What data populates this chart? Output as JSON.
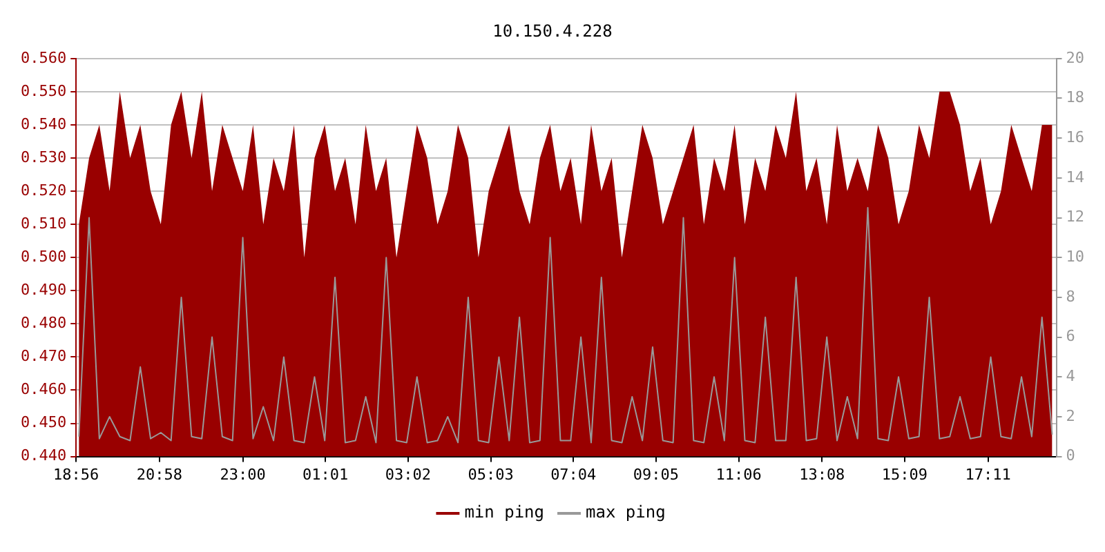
{
  "chart_data": {
    "type": "area",
    "title": "10.150.4.228",
    "x": [
      "--01-01T19:00",
      "--01-01T19:15",
      "--01-01T19:30",
      "--01-01T19:45",
      "--01-01T20:00",
      "--01-01T20:15",
      "--01-01T20:30",
      "--01-01T20:45",
      "--01-01T21:00",
      "--01-01T21:15",
      "--01-01T21:30",
      "--01-01T21:45",
      "--01-01T22:00",
      "--01-01T22:15",
      "--01-01T22:30",
      "--01-01T22:45",
      "--01-01T23:00",
      "--01-01T23:15",
      "--01-01T23:30",
      "--01-01T23:45",
      "--01-02T00:00",
      "--01-02T00:15",
      "--01-02T00:30",
      "--01-02T00:45",
      "--01-02T01:00",
      "--01-02T01:15",
      "--01-02T01:30",
      "--01-02T01:45",
      "--01-02T02:00",
      "--01-02T02:15",
      "--01-02T02:30",
      "--01-02T02:45",
      "--01-02T03:00",
      "--01-02T03:15",
      "--01-02T03:30",
      "--01-02T03:45",
      "--01-02T04:00",
      "--01-02T04:15",
      "--01-02T04:30",
      "--01-02T04:45",
      "--01-02T05:00",
      "--01-02T05:15",
      "--01-02T05:30",
      "--01-02T05:45",
      "--01-02T06:00",
      "--01-02T06:15",
      "--01-02T06:30",
      "--01-02T06:45",
      "--01-02T07:00",
      "--01-02T07:15",
      "--01-02T07:30",
      "--01-02T07:45",
      "--01-02T08:00",
      "--01-02T08:15",
      "--01-02T08:30",
      "--01-02T08:45",
      "--01-02T09:00",
      "--01-02T09:15",
      "--01-02T09:30",
      "--01-02T09:45",
      "--01-02T10:00",
      "--01-02T10:15",
      "--01-02T10:30",
      "--01-02T10:45",
      "--01-02T11:00",
      "--01-02T11:15",
      "--01-02T11:30",
      "--01-02T11:45",
      "--01-02T12:00",
      "--01-02T12:15",
      "--01-02T12:30",
      "--01-02T12:45",
      "--01-02T13:00",
      "--01-02T13:15",
      "--01-02T13:30",
      "--01-02T13:45",
      "--01-02T14:00",
      "--01-02T14:15",
      "--01-02T14:30",
      "--01-02T14:45",
      "--01-02T15:00",
      "--01-02T15:15",
      "--01-02T15:30",
      "--01-02T15:45",
      "--01-02T16:00",
      "--01-02T16:15",
      "--01-02T16:30",
      "--01-02T16:45",
      "--01-02T17:00",
      "--01-02T17:15",
      "--01-02T17:30",
      "--01-02T17:45",
      "--01-02T18:00",
      "--01-02T18:15",
      "--01-02T18:30",
      "--01-02T18:45"
    ],
    "series": [
      {
        "name": "min ping",
        "color": "#990000",
        "values": [
          0.51,
          0.53,
          0.54,
          0.52,
          0.55,
          0.53,
          0.54,
          0.52,
          0.51,
          0.54,
          0.55,
          0.53,
          0.55,
          0.52,
          0.54,
          0.53,
          0.52,
          0.54,
          0.51,
          0.53,
          0.52,
          0.54,
          0.5,
          0.53,
          0.54,
          0.52,
          0.53,
          0.51,
          0.54,
          0.52,
          0.53,
          0.5,
          0.52,
          0.54,
          0.53,
          0.51,
          0.52,
          0.54,
          0.53,
          0.5,
          0.52,
          0.53,
          0.54,
          0.52,
          0.51,
          0.53,
          0.54,
          0.52,
          0.53,
          0.51,
          0.54,
          0.52,
          0.53,
          0.5,
          0.52,
          0.54,
          0.53,
          0.51,
          0.52,
          0.53,
          0.54,
          0.51,
          0.53,
          0.52,
          0.54,
          0.51,
          0.53,
          0.52,
          0.54,
          0.53,
          0.55,
          0.52,
          0.53,
          0.51,
          0.54,
          0.52,
          0.53,
          0.52,
          0.54,
          0.53,
          0.51,
          0.52,
          0.54,
          0.53,
          0.55,
          0.55,
          0.54,
          0.52,
          0.53,
          0.51,
          0.52,
          0.54,
          0.53,
          0.52,
          0.54,
          0.54
        ]
      },
      {
        "name": "max ping",
        "type": "line",
        "axis": "y2",
        "color": "#999999",
        "values": [
          1.0,
          12,
          0.9,
          2,
          1.0,
          0.8,
          4.5,
          0.9,
          1.2,
          0.8,
          8,
          1.0,
          0.9,
          6,
          1.0,
          0.8,
          11,
          0.9,
          2.5,
          0.8,
          5,
          0.8,
          0.7,
          4,
          0.8,
          9,
          0.7,
          0.8,
          3,
          0.7,
          10,
          0.8,
          0.7,
          4,
          0.7,
          0.8,
          2,
          0.7,
          8,
          0.8,
          0.7,
          5,
          0.8,
          7,
          0.7,
          0.8,
          11,
          0.8,
          0.8,
          6,
          0.7,
          9,
          0.8,
          0.7,
          3,
          0.8,
          5.5,
          0.8,
          0.7,
          12,
          0.8,
          0.7,
          4,
          0.8,
          10,
          0.8,
          0.7,
          7,
          0.8,
          0.8,
          9,
          0.8,
          0.9,
          6,
          0.8,
          3,
          0.9,
          12.5,
          0.9,
          0.8,
          4,
          0.9,
          1.0,
          8,
          0.9,
          1.0,
          3,
          0.9,
          1.0,
          5,
          1.0,
          0.9,
          4,
          1.0,
          7,
          1.1
        ]
      }
    ],
    "xlim": [
      "--01-01T18:56",
      "--01-02T18:51"
    ],
    "xticks": [
      {
        "value": "--01-01T18:56",
        "label": "18:56"
      },
      {
        "value": "--01-01T20:58",
        "label": "20:58"
      },
      {
        "value": "--01-01T23:00",
        "label": "23:00"
      },
      {
        "value": "--01-02T01:01",
        "label": "01:01"
      },
      {
        "value": "--01-02T03:02",
        "label": "03:02"
      },
      {
        "value": "--01-02T05:03",
        "label": "05:03"
      },
      {
        "value": "--01-02T07:04",
        "label": "07:04"
      },
      {
        "value": "--01-02T09:05",
        "label": "09:05"
      },
      {
        "value": "--01-02T11:06",
        "label": "11:06"
      },
      {
        "value": "--01-02T13:08",
        "label": "13:08"
      },
      {
        "value": "--01-02T15:09",
        "label": "15:09"
      },
      {
        "value": "--01-02T17:11",
        "label": "17:11"
      }
    ],
    "ylim": [
      0.44,
      0.56
    ],
    "yticks": [
      {
        "value": 0.44,
        "label": "0.440"
      },
      {
        "value": 0.45,
        "label": "0.450"
      },
      {
        "value": 0.46,
        "label": "0.460"
      },
      {
        "value": 0.47,
        "label": "0.470"
      },
      {
        "value": 0.48,
        "label": "0.480"
      },
      {
        "value": 0.49,
        "label": "0.490"
      },
      {
        "value": 0.5,
        "label": "0.500"
      },
      {
        "value": 0.51,
        "label": "0.510"
      },
      {
        "value": 0.52,
        "label": "0.520"
      },
      {
        "value": 0.53,
        "label": "0.530"
      },
      {
        "value": 0.54,
        "label": "0.540"
      },
      {
        "value": 0.55,
        "label": "0.550"
      },
      {
        "value": 0.56,
        "label": "0.560"
      }
    ],
    "y2lim": [
      0,
      20
    ],
    "y2ticks": [
      0,
      2,
      4,
      6,
      8,
      10,
      12,
      14,
      16,
      18,
      20
    ],
    "grid": "y",
    "legend": "bottom",
    "marker": "none",
    "line_style": "solid"
  }
}
